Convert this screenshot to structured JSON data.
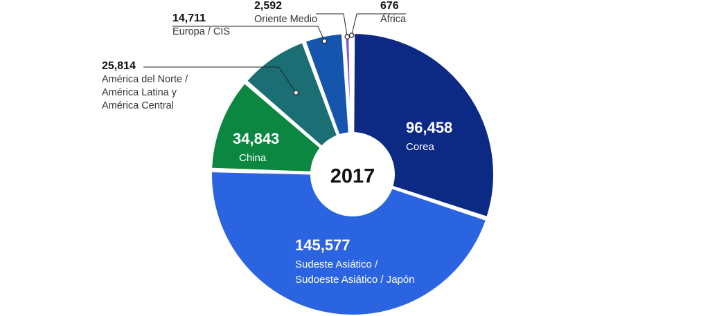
{
  "chart_data": {
    "type": "pie",
    "center_label": "2017",
    "slices": [
      {
        "value": 96458,
        "value_label": "96,458",
        "label_lines": [
          "Corea"
        ],
        "color": "#0c2a84"
      },
      {
        "value": 145577,
        "value_label": "145,577",
        "label_lines": [
          "Sudeste Asiático /",
          "Sudoeste Asiático / Japón"
        ],
        "color": "#2a64e0"
      },
      {
        "value": 34843,
        "value_label": "34,843",
        "label_lines": [
          "China"
        ],
        "color": "#0b8741"
      },
      {
        "value": 25814,
        "value_label": "25,814",
        "label_lines": [
          "América del Norte /",
          "América Latina y",
          "América Central"
        ],
        "color": "#1b6f74"
      },
      {
        "value": 14711,
        "value_label": "14,711",
        "label_lines": [
          "Europa / CIS"
        ],
        "color": "#1555ad"
      },
      {
        "value": 2592,
        "value_label": "2,592",
        "label_lines": [
          "Oriente Medio"
        ],
        "color": "#7a4ee8"
      },
      {
        "value": 676,
        "value_label": "676",
        "label_lines": [
          "África"
        ],
        "color": "#3d8fbd"
      }
    ]
  }
}
